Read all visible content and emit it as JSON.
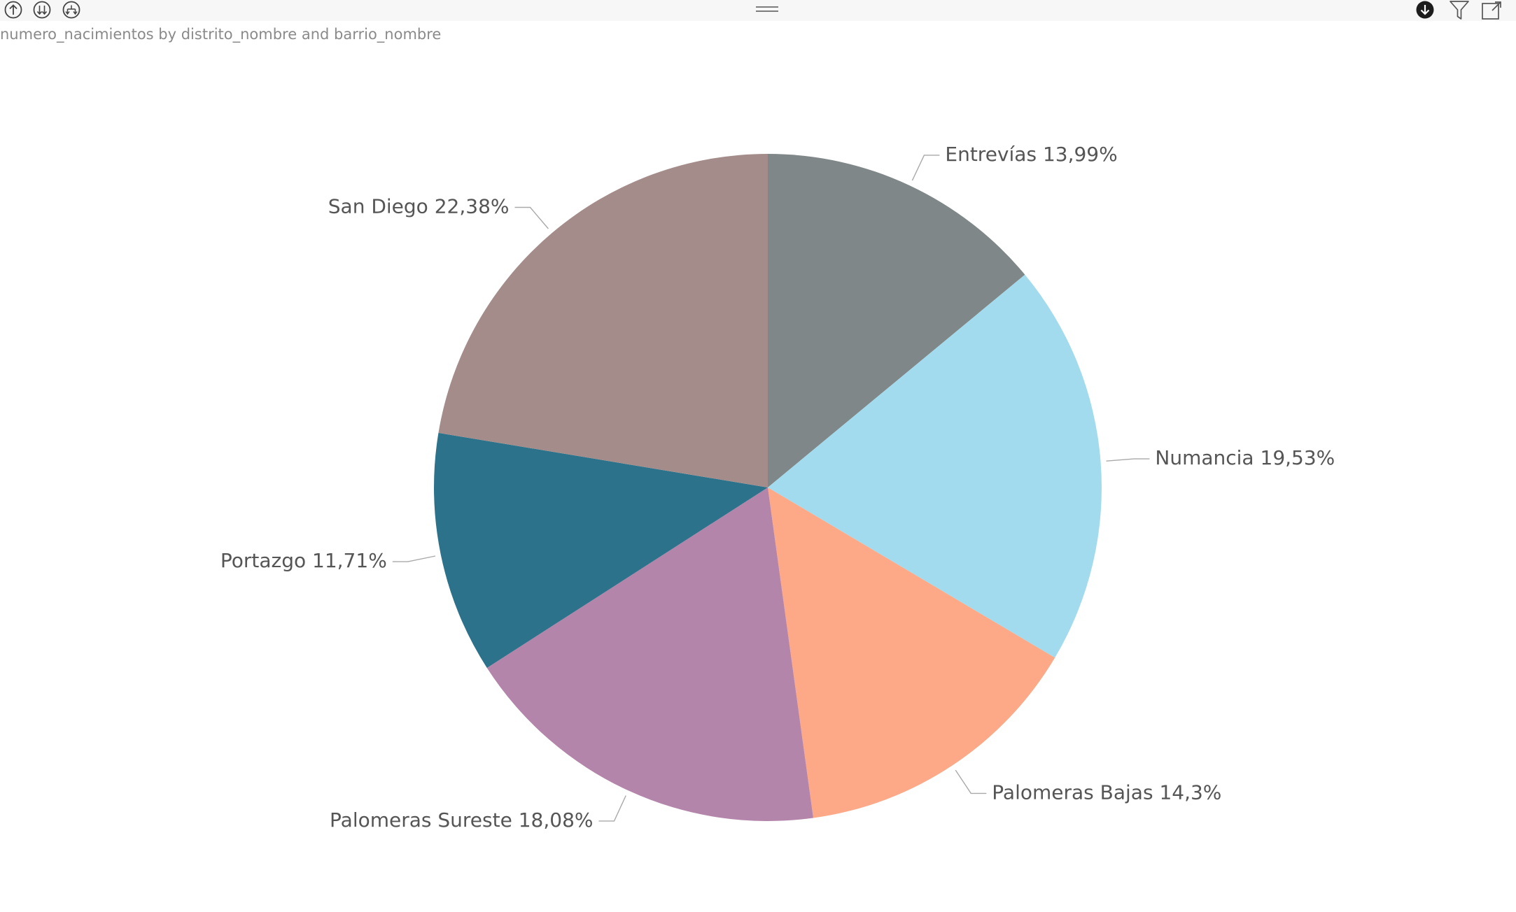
{
  "visual": {
    "title": "numero_nacimientos by distrito_nombre and barrio_nombre"
  },
  "header_icons": {
    "left": [
      "drill-up-icon",
      "expand-all-down-icon",
      "drill-down-hierarchy-icon"
    ],
    "right": [
      "drill-mode-icon",
      "filter-icon",
      "focus-mode-icon"
    ]
  },
  "chart_data": {
    "type": "pie",
    "start_angle_deg": 0,
    "direction": "clockwise",
    "label_format": "{category} {percent}",
    "slices": [
      {
        "category": "Entrevías",
        "percent_label": "13,99%",
        "value": 13.99,
        "color": "#7f8788"
      },
      {
        "category": "Numancia",
        "percent_label": "19,53%",
        "value": 19.53,
        "color": "#a3dbee"
      },
      {
        "category": "Palomeras Bajas",
        "percent_label": "14,3%",
        "value": 14.3,
        "color": "#fda987"
      },
      {
        "category": "Palomeras Sureste",
        "percent_label": "18,08%",
        "value": 18.08,
        "color": "#b485aa"
      },
      {
        "category": "Portazgo",
        "percent_label": "11,71%",
        "value": 11.71,
        "color": "#2c728a"
      },
      {
        "category": "San Diego",
        "percent_label": "22,38%",
        "value": 22.38,
        "color": "#a48c8a"
      }
    ]
  }
}
